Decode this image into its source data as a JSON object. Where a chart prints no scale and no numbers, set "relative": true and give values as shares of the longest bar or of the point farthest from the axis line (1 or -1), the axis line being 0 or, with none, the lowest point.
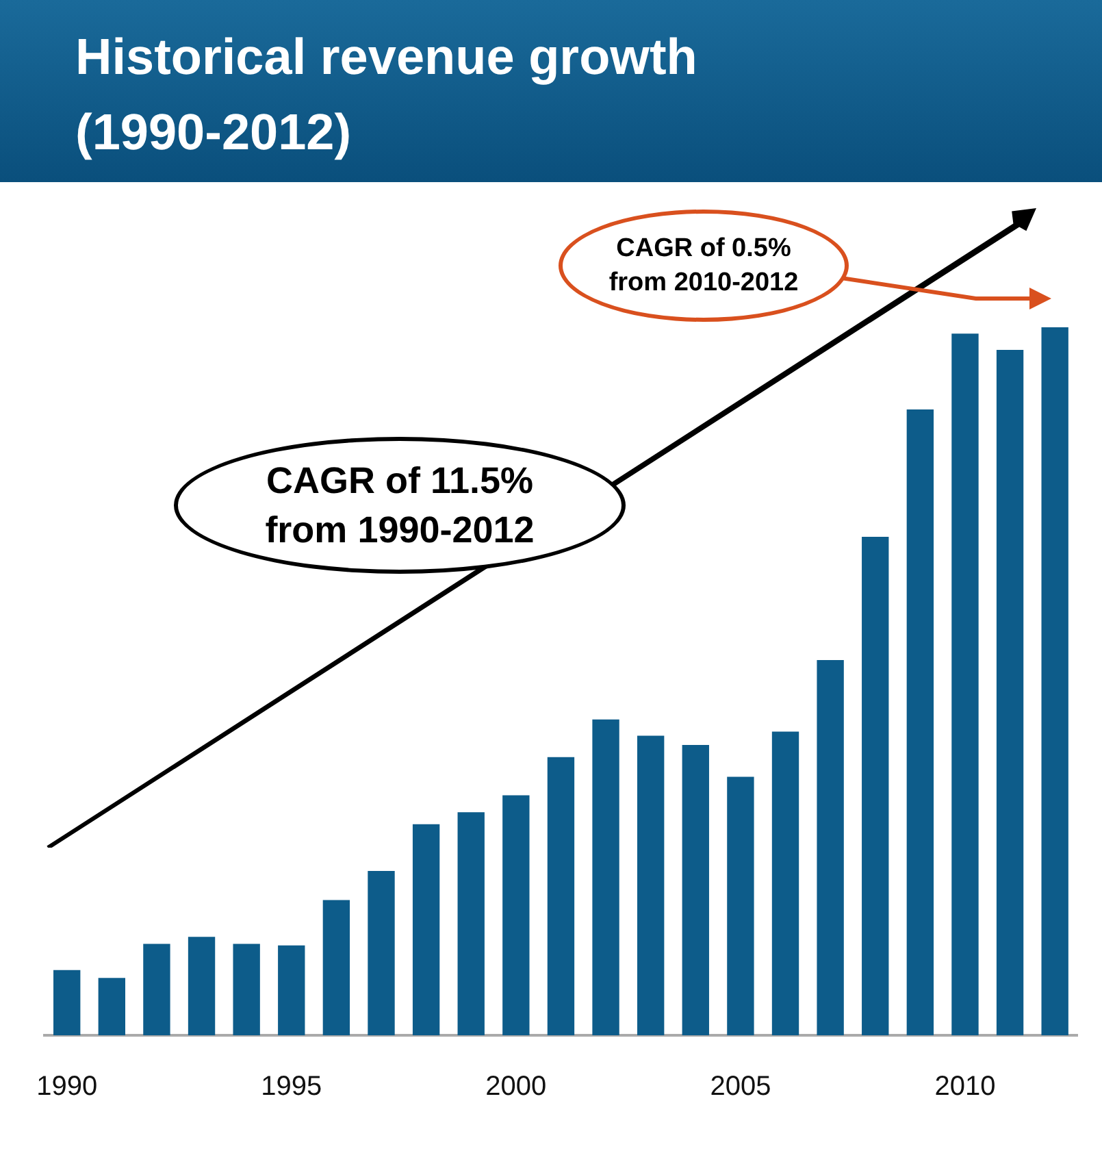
{
  "chart_data": {
    "type": "bar",
    "title": "Historical revenue growth (1990-2012)",
    "relative": true,
    "color": "#0d5c8a",
    "categories": [
      "1990",
      null,
      null,
      null,
      null,
      "1995",
      null,
      null,
      null,
      null,
      "2000",
      null,
      null,
      null,
      null,
      "2005",
      null,
      null,
      null,
      null,
      "2010",
      null,
      null
    ],
    "values": [
      0.092,
      0.081,
      0.129,
      0.139,
      0.129,
      0.127,
      0.191,
      0.232,
      0.298,
      0.315,
      0.339,
      0.393,
      0.446,
      0.423,
      0.41,
      0.365,
      0.429,
      0.53,
      0.704,
      0.884,
      0.991,
      0.968,
      1
    ],
    "annotations": [
      "CAGR of 11.5% from 1990-2012",
      "CAGR of 0.5% from 2010-2012"
    ]
  }
}
